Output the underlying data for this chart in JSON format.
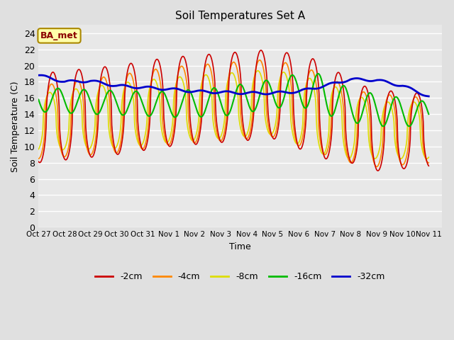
{
  "title": "Soil Temperatures Set A",
  "xlabel": "Time",
  "ylabel": "Soil Temperature (C)",
  "annotation": "BA_met",
  "ylim": [
    0,
    25
  ],
  "yticks": [
    0,
    2,
    4,
    6,
    8,
    10,
    12,
    14,
    16,
    18,
    20,
    22,
    24
  ],
  "xtick_labels": [
    "Oct 27",
    "Oct 28",
    "Oct 29",
    "Oct 30",
    "Oct 31",
    "Nov 1",
    "Nov 2",
    "Nov 3",
    "Nov 4",
    "Nov 5",
    "Nov 6",
    "Nov 7",
    "Nov 8",
    "Nov 9",
    "Nov 10",
    "Nov 11"
  ],
  "bg_color": "#e0e0e0",
  "plot_bg": "#e8e8e8",
  "lower_bg": "#f5f5f5",
  "grid_color": "#ffffff",
  "series": {
    "-2cm": {
      "color": "#cc0000",
      "lw": 1.2
    },
    "-4cm": {
      "color": "#ff8800",
      "lw": 1.2
    },
    "-8cm": {
      "color": "#dddd00",
      "lw": 1.2
    },
    "-16cm": {
      "color": "#00bb00",
      "lw": 1.5
    },
    "-32cm": {
      "color": "#0000cc",
      "lw": 2.0
    }
  }
}
